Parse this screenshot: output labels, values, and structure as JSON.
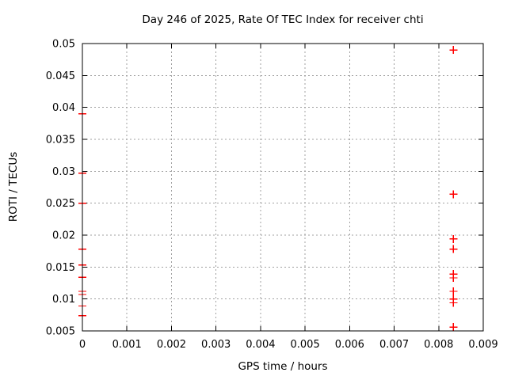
{
  "chart_data": {
    "type": "scatter",
    "title": "Day 246 of 2025, Rate Of TEC Index for receiver chti",
    "xlabel": "GPS time / hours",
    "ylabel": "ROTI / TECUs",
    "xlim": [
      0,
      0.009
    ],
    "ylim": [
      0.005,
      0.05
    ],
    "xticks": {
      "values": [
        0,
        0.001,
        0.002,
        0.003,
        0.004,
        0.005,
        0.006,
        0.007,
        0.008,
        0.009
      ],
      "labels": [
        "0",
        "0.001",
        "0.002",
        "0.003",
        "0.004",
        "0.005",
        "0.006",
        "0.007",
        "0.008",
        "0.009"
      ]
    },
    "yticks": {
      "values": [
        0.005,
        0.01,
        0.015,
        0.02,
        0.025,
        0.03,
        0.035,
        0.04,
        0.045,
        0.05
      ],
      "labels": [
        "0.005",
        "0.01",
        "0.015",
        "0.02",
        "0.025",
        "0.03",
        "0.035",
        "0.04",
        "0.045",
        "0.05"
      ]
    },
    "grid": true,
    "legend_position": "none",
    "marker": "plus",
    "colors": {
      "points": "#ff0000",
      "grid": "#a0a0a0",
      "axis": "#000000",
      "background": "#ffffff",
      "text": "#000000"
    },
    "series": [
      {
        "name": "ROTI",
        "points": [
          [
            0,
            0.039
          ],
          [
            0,
            0.0297
          ],
          [
            0,
            0.025
          ],
          [
            0,
            0.0178
          ],
          [
            0,
            0.0153
          ],
          [
            0,
            0.0134
          ],
          [
            0,
            0.0112
          ],
          [
            0,
            0.0107
          ],
          [
            0,
            0.0089
          ],
          [
            0,
            0.0074
          ],
          [
            0.00833,
            0.049
          ],
          [
            0.00833,
            0.0264
          ],
          [
            0.00833,
            0.0194
          ],
          [
            0.00833,
            0.0178
          ],
          [
            0.00833,
            0.0139
          ],
          [
            0.00833,
            0.0133
          ],
          [
            0.00833,
            0.0112
          ],
          [
            0.00833,
            0.01
          ],
          [
            0.00833,
            0.0094
          ],
          [
            0.00833,
            0.0056
          ]
        ]
      }
    ]
  }
}
